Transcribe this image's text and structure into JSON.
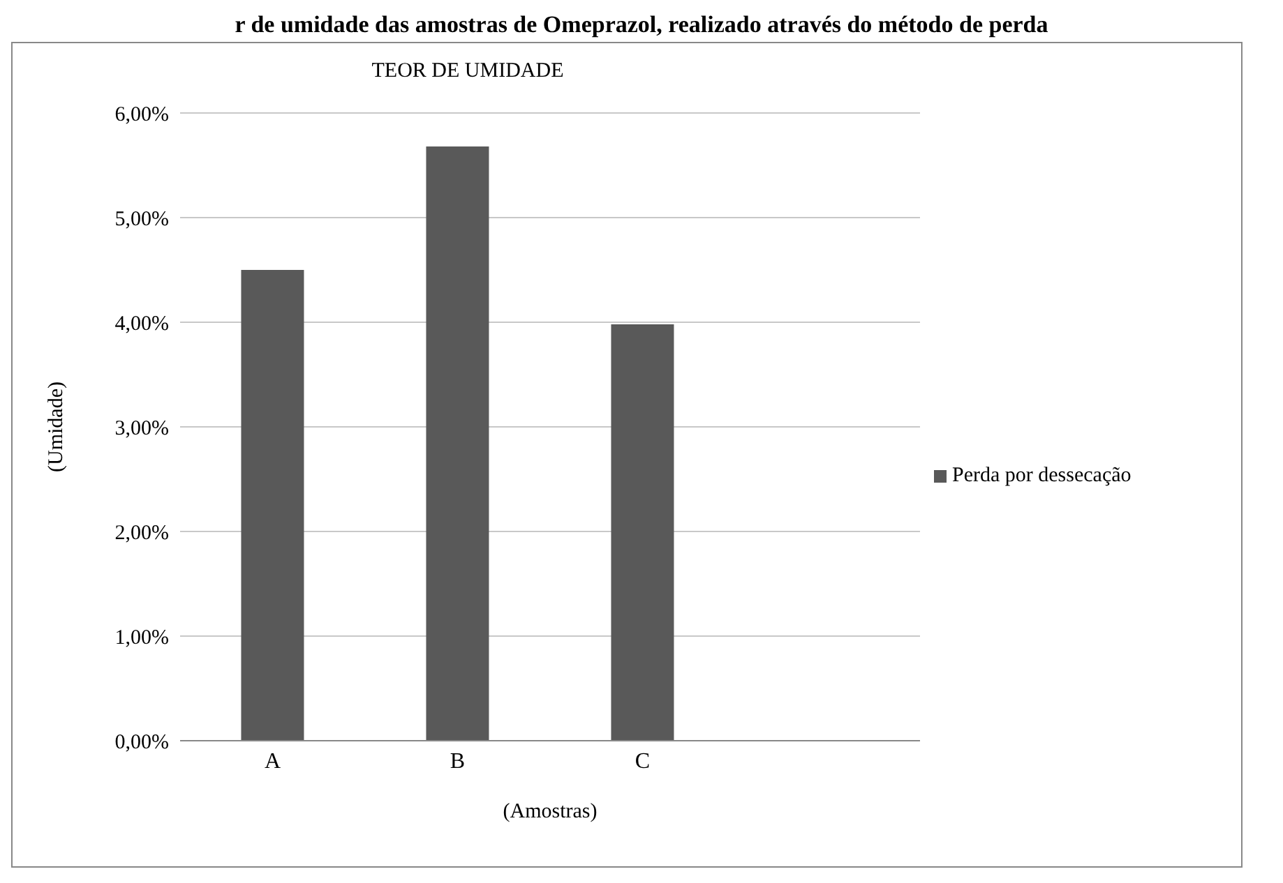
{
  "chart_data": {
    "type": "bar",
    "title": "TEOR DE UMIDADE",
    "subtitle": "r de umidade das amostras de Omeprazol, realizado através do método de perda",
    "xlabel": "(Amostras)",
    "ylabel": "(Umidade)",
    "categories": [
      "A",
      "B",
      "C",
      null
    ],
    "series": [
      {
        "name": "Perda por dessecação",
        "color": "#595959",
        "values": [
          4.5,
          5.68,
          3.98,
          null
        ]
      }
    ],
    "ylim": [
      0,
      6
    ],
    "yticks": [
      {
        "value": 0,
        "label": "0,00%"
      },
      {
        "value": 1,
        "label": "1,00%"
      },
      {
        "value": 2,
        "label": "2,00%"
      },
      {
        "value": 3,
        "label": "3,00%"
      },
      {
        "value": 4,
        "label": "4,00%"
      },
      {
        "value": 5,
        "label": "5,00%"
      },
      {
        "value": 6,
        "label": "6,00%"
      }
    ],
    "grid": "y",
    "legend": "right"
  }
}
